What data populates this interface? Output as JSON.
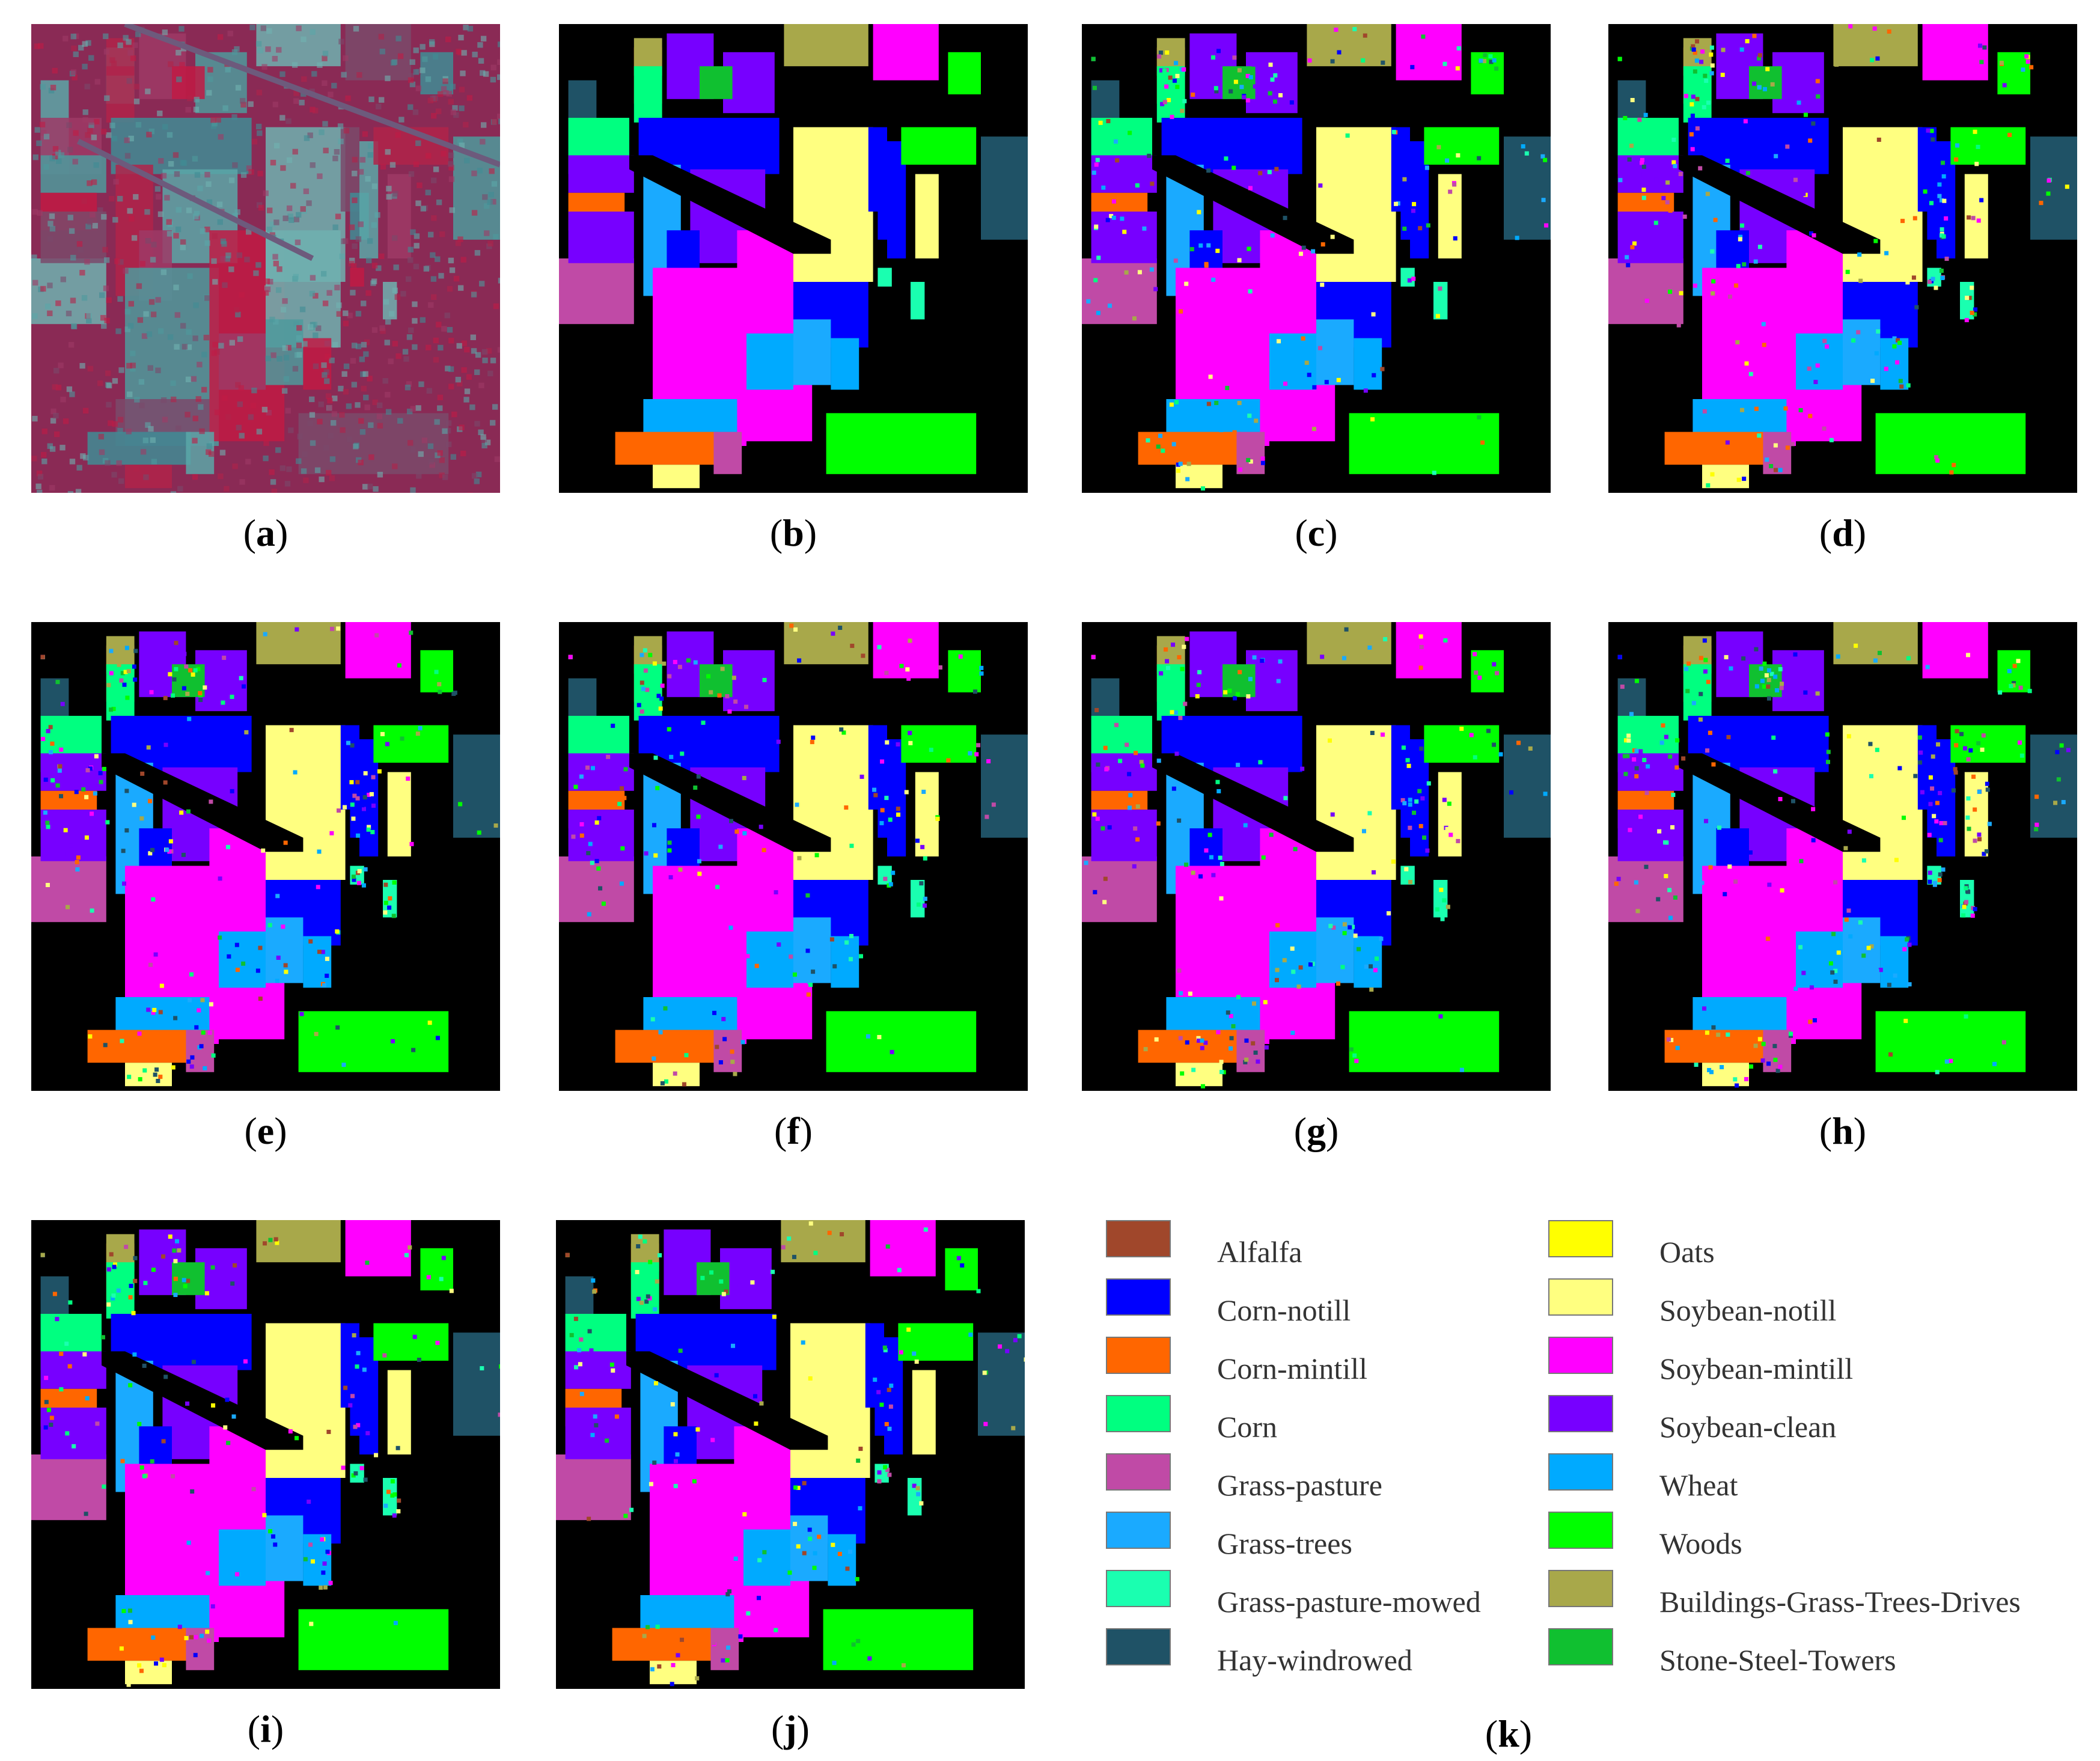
{
  "panels": [
    {
      "id": "a",
      "label": "a",
      "kind": "false-color"
    },
    {
      "id": "b",
      "label": "b",
      "kind": "ground-truth",
      "noise": 0
    },
    {
      "id": "c",
      "label": "c",
      "kind": "classification",
      "noise": 0.1
    },
    {
      "id": "d",
      "label": "d",
      "kind": "classification",
      "noise": 0.11
    },
    {
      "id": "e",
      "label": "e",
      "kind": "classification",
      "noise": 0.12
    },
    {
      "id": "f",
      "label": "f",
      "kind": "classification",
      "noise": 0.09
    },
    {
      "id": "g",
      "label": "g",
      "kind": "classification",
      "noise": 0.1
    },
    {
      "id": "h",
      "label": "h",
      "kind": "classification",
      "noise": 0.13
    },
    {
      "id": "i",
      "label": "i",
      "kind": "classification",
      "noise": 0.08
    },
    {
      "id": "j",
      "label": "j",
      "kind": "classification",
      "noise": 0.08
    }
  ],
  "legend": {
    "label": "k",
    "classes": [
      {
        "name": "Alfalfa",
        "color": "#a0472b"
      },
      {
        "name": "Corn-notill",
        "color": "#0000ff"
      },
      {
        "name": "Corn-mintill",
        "color": "#ff6600"
      },
      {
        "name": "Corn",
        "color": "#00ff80"
      },
      {
        "name": "Grass-pasture",
        "color": "#c04aa6"
      },
      {
        "name": "Grass-trees",
        "color": "#1aaaff"
      },
      {
        "name": "Grass-pasture-mowed",
        "color": "#1affb0"
      },
      {
        "name": "Hay-windrowed",
        "color": "#1f5266"
      },
      {
        "name": "Oats",
        "color": "#ffff00"
      },
      {
        "name": "Soybean-notill",
        "color": "#ffff80"
      },
      {
        "name": "Soybean-mintill",
        "color": "#ff00ff"
      },
      {
        "name": "Soybean-clean",
        "color": "#7700ff"
      },
      {
        "name": "Wheat",
        "color": "#00aaff"
      },
      {
        "name": "Woods",
        "color": "#00ff00"
      },
      {
        "name": "Buildings-Grass-Trees-Drives",
        "color": "#a8a84a"
      },
      {
        "name": "Stone-Steel-Towers",
        "color": "#10c030"
      }
    ]
  }
}
